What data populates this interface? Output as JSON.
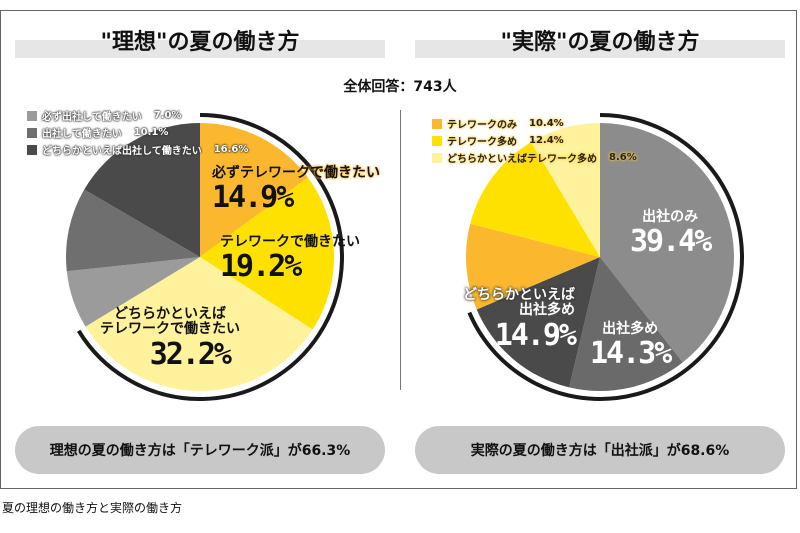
{
  "total": "全体回答：743人",
  "caption": "夏の理想の働き方と実際の働き方",
  "chart_data": [
    {
      "type": "pie",
      "title": "\"理想\"の夏の働き方",
      "start": "top",
      "direction": "clockwise",
      "slices": [
        {
          "label": "必ずテレワークで働きたい",
          "value": 14.9,
          "display": "14.9%",
          "color": "#fbb82e"
        },
        {
          "label": "テレワークで働きたい",
          "value": 19.2,
          "display": "19.2%",
          "color": "#ffe100"
        },
        {
          "label": "どちらかといえばテレワークで働きたい",
          "value": 32.2,
          "display": "32.2%",
          "color": "#fff29c"
        },
        {
          "label": "必ず出社して働きたい",
          "value": 7.0,
          "display": "7.0%",
          "color": "#9b9b9b"
        },
        {
          "label": "出社して働きたい",
          "value": 10.1,
          "display": "10.1%",
          "color": "#6f6f6f"
        },
        {
          "label": "どちらかといえば出社して働きたい",
          "value": 16.6,
          "display": "16.6%",
          "color": "#4a4a4a"
        }
      ],
      "highlight_arc_percent": 66.3,
      "summary": "理想の夏の働き方は「テレワーク派」が66.3%"
    },
    {
      "type": "pie",
      "title": "\"実際\"の夏の働き方",
      "start": "top",
      "direction": "clockwise",
      "slices": [
        {
          "label": "出社のみ",
          "value": 39.4,
          "display": "39.4%",
          "color": "#8c8c8c"
        },
        {
          "label": "出社多め",
          "value": 14.3,
          "display": "14.3%",
          "color": "#6a6a6a"
        },
        {
          "label": "どちらかといえば出社多め",
          "value": 14.9,
          "display": "14.9%",
          "color": "#4a4a4a"
        },
        {
          "label": "テレワークのみ",
          "value": 10.4,
          "display": "10.4%",
          "color": "#fbb82e"
        },
        {
          "label": "テレワーク多め",
          "value": 12.4,
          "display": "12.4%",
          "color": "#ffe100"
        },
        {
          "label": "どちらかといえばテレワーク多め",
          "value": 8.6,
          "display": "8.6%",
          "color": "#fff29c"
        }
      ],
      "highlight_arc_percent": 68.6,
      "summary": "実際の夏の働き方は「出社派」が68.6%"
    }
  ],
  "labels": {
    "left_l0_line": "必ずテレワークで働きたい",
    "left_l1_line": "テレワークで働きたい",
    "left_l2_line1": "どちらかといえば",
    "left_l2_line2": "テレワークで働きたい",
    "right_l2_line1": "どちらかといえば",
    "right_l2_line2": "出社多め"
  }
}
